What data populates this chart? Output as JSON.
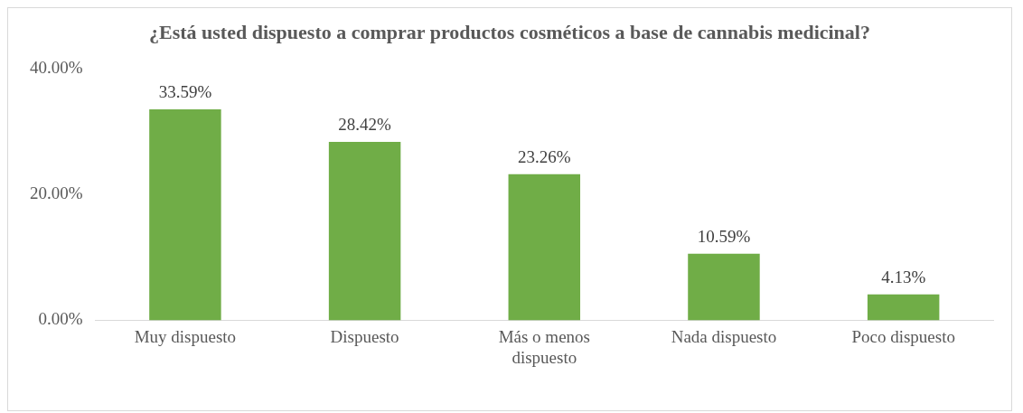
{
  "chart_data": {
    "type": "bar",
    "title": "¿Está usted dispuesto a comprar productos cosméticos a base de cannabis medicinal?",
    "categories": [
      "Muy dispuesto",
      "Dispuesto",
      "Más o menos dispuesto",
      "Nada dispuesto",
      "Poco dispuesto"
    ],
    "values": [
      33.59,
      28.42,
      23.26,
      10.59,
      4.13
    ],
    "value_labels": [
      "33.59%",
      "28.42%",
      "23.26%",
      "10.59%",
      "4.13%"
    ],
    "color": "#70ad47",
    "ylim": [
      0,
      40
    ],
    "yticks": [
      {
        "value": 0,
        "label": "0.00%"
      },
      {
        "value": 20,
        "label": "20.00%"
      },
      {
        "value": 40,
        "label": "40.00%"
      }
    ],
    "grid": false,
    "legend": false
  }
}
